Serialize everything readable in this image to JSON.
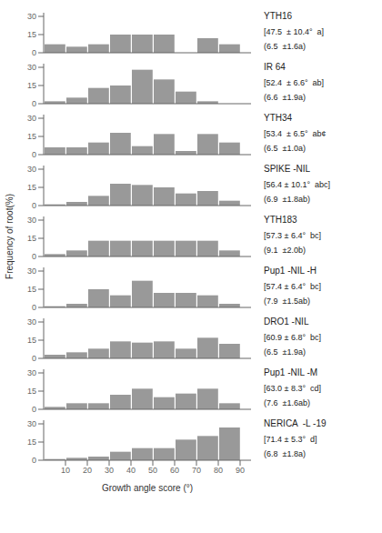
{
  "chart_data": [
    {
      "type": "histogram",
      "bins": [
        0,
        10,
        20,
        30,
        40,
        50,
        60,
        70,
        80,
        90
      ],
      "values": [
        7,
        5,
        7,
        15,
        15,
        15,
        0,
        12,
        7
      ],
      "xlim": [
        0,
        95
      ],
      "xticks": [
        10,
        20,
        30,
        40,
        50,
        60,
        70,
        80,
        90
      ],
      "ylim": [
        0,
        33
      ],
      "yticks": [
        0,
        15,
        30
      ],
      "color": "#999999",
      "tick_labels": "y",
      "annotations": [
        "YTH16",
        "[47.5  ± 10.4°  a]",
        "(6.5  ±1.6a)"
      ]
    },
    {
      "type": "histogram",
      "bins": [
        0,
        10,
        20,
        30,
        40,
        50,
        60,
        70,
        80,
        90
      ],
      "values": [
        2,
        5,
        13,
        15,
        28,
        20,
        10,
        2,
        0
      ],
      "xlim": [
        0,
        95
      ],
      "xticks": [
        10,
        20,
        30,
        40,
        50,
        60,
        70,
        80,
        90
      ],
      "ylim": [
        0,
        33
      ],
      "yticks": [
        0,
        15,
        30
      ],
      "color": "#999999",
      "tick_labels": "y",
      "annotations": [
        "IR 64",
        "[52.4  ± 6.6°  ab]",
        "(6.6  ±1.9a)"
      ]
    },
    {
      "type": "histogram",
      "bins": [
        0,
        10,
        20,
        30,
        40,
        50,
        60,
        70,
        80,
        90
      ],
      "values": [
        6,
        6,
        10,
        18,
        7,
        17,
        3,
        17,
        10
      ],
      "xlim": [
        0,
        95
      ],
      "xticks": [
        10,
        20,
        30,
        40,
        50,
        60,
        70,
        80,
        90
      ],
      "ylim": [
        0,
        33
      ],
      "yticks": [
        0,
        15,
        30
      ],
      "color": "#999999",
      "tick_labels": "y",
      "annotations": [
        "YTH34",
        "[53.4  ± 6.5°  ab¢",
        "(6.5  ±1.0a)"
      ]
    },
    {
      "type": "histogram",
      "bins": [
        0,
        10,
        20,
        30,
        40,
        50,
        60,
        70,
        80,
        90
      ],
      "values": [
        1,
        3,
        8,
        18,
        17,
        15,
        10,
        12,
        4
      ],
      "xlim": [
        0,
        95
      ],
      "xticks": [
        10,
        20,
        30,
        40,
        50,
        60,
        70,
        80,
        90
      ],
      "ylim": [
        0,
        33
      ],
      "yticks": [
        0,
        15,
        30
      ],
      "color": "#999999",
      "tick_labels": "y",
      "annotations": [
        "SPIKE -NIL",
        "[56.4 ± 10.1°  abc]",
        "(6.9  ±1.8ab)"
      ]
    },
    {
      "type": "histogram",
      "bins": [
        0,
        10,
        20,
        30,
        40,
        50,
        60,
        70,
        80,
        90
      ],
      "values": [
        2,
        5,
        13,
        13,
        13,
        13,
        13,
        13,
        5
      ],
      "xlim": [
        0,
        95
      ],
      "xticks": [
        10,
        20,
        30,
        40,
        50,
        60,
        70,
        80,
        90
      ],
      "ylim": [
        0,
        33
      ],
      "yticks": [
        0,
        15,
        30
      ],
      "color": "#999999",
      "tick_labels": "y",
      "ylabel": "Frequency of root(%)",
      "annotations": [
        "YTH183",
        "[57.3 ± 6.4°  bc]",
        "(9.1  ±2.0b)"
      ]
    },
    {
      "type": "histogram",
      "bins": [
        0,
        10,
        20,
        30,
        40,
        50,
        60,
        70,
        80,
        90
      ],
      "values": [
        1,
        3,
        15,
        10,
        22,
        12,
        12,
        10,
        3
      ],
      "xlim": [
        0,
        95
      ],
      "xticks": [
        10,
        20,
        30,
        40,
        50,
        60,
        70,
        80,
        90
      ],
      "ylim": [
        0,
        33
      ],
      "yticks": [
        0,
        15,
        30
      ],
      "color": "#999999",
      "tick_labels": "y",
      "annotations": [
        "Pup1 -NIL -H",
        "[57.4 ± 6.4°  bc]",
        "(7.9  ±1.5ab)"
      ]
    },
    {
      "type": "histogram",
      "bins": [
        0,
        10,
        20,
        30,
        40,
        50,
        60,
        70,
        80,
        90
      ],
      "values": [
        3,
        5,
        8,
        14,
        13,
        14,
        8,
        17,
        12
      ],
      "xlim": [
        0,
        95
      ],
      "xticks": [
        10,
        20,
        30,
        40,
        50,
        60,
        70,
        80,
        90
      ],
      "ylim": [
        0,
        33
      ],
      "yticks": [
        0,
        15,
        30
      ],
      "color": "#999999",
      "tick_labels": "y",
      "annotations": [
        "DRO1 -NIL",
        "[60.9 ± 6.8°  bc]",
        "(6.5  ±1.9a)"
      ]
    },
    {
      "type": "histogram",
      "bins": [
        0,
        10,
        20,
        30,
        40,
        50,
        60,
        70,
        80,
        90
      ],
      "values": [
        2,
        5,
        5,
        12,
        17,
        10,
        13,
        17,
        5
      ],
      "xlim": [
        0,
        95
      ],
      "xticks": [
        10,
        20,
        30,
        40,
        50,
        60,
        70,
        80,
        90
      ],
      "ylim": [
        0,
        33
      ],
      "yticks": [
        0,
        15,
        30
      ],
      "color": "#999999",
      "tick_labels": "y",
      "annotations": [
        "Pup1 -NIL -M",
        "[63.0 ± 8.3°  cd]",
        "(7.6  ±1.6ab)"
      ]
    },
    {
      "type": "histogram",
      "bins": [
        0,
        10,
        20,
        30,
        40,
        50,
        60,
        70,
        80,
        90
      ],
      "values": [
        1,
        2,
        3,
        7,
        10,
        10,
        17,
        20,
        27
      ],
      "xlim": [
        0,
        95
      ],
      "xticks": [
        10,
        20,
        30,
        40,
        50,
        60,
        70,
        80,
        90
      ],
      "ylim": [
        0,
        33
      ],
      "yticks": [
        0,
        15,
        30
      ],
      "color": "#999999",
      "xlabel": "Growth angle score (°)",
      "annotations": [
        "NERICA  -L -19",
        "[71.4 ± 5.3°  d]",
        "(6.8  ±1.8a)"
      ]
    }
  ]
}
